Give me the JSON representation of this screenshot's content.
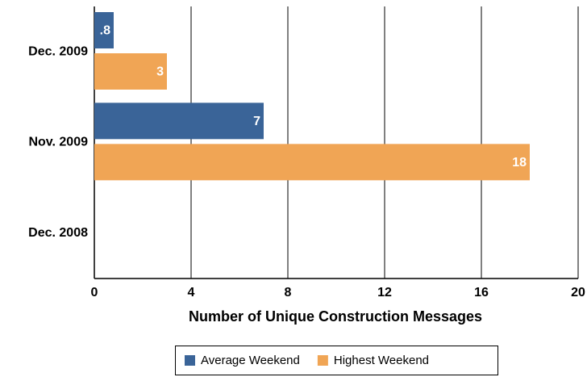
{
  "chart_data": {
    "type": "bar",
    "orientation": "horizontal",
    "categories": [
      "Dec. 2009",
      "Nov. 2009",
      "Dec. 2008"
    ],
    "series": [
      {
        "name": "Average Weekend",
        "color": "#3a6498",
        "values": [
          0.8,
          7,
          null
        ],
        "value_labels": [
          ".8",
          "7",
          null
        ]
      },
      {
        "name": "Highest Weekend",
        "color": "#f0a555",
        "values": [
          3,
          18,
          null
        ]
      }
    ],
    "xlabel": "Number of Unique Construction Messages",
    "xlim": [
      0,
      20
    ],
    "xticks": [
      0,
      4,
      8,
      12,
      16,
      20
    ],
    "grid": true,
    "legend": "bottom"
  }
}
